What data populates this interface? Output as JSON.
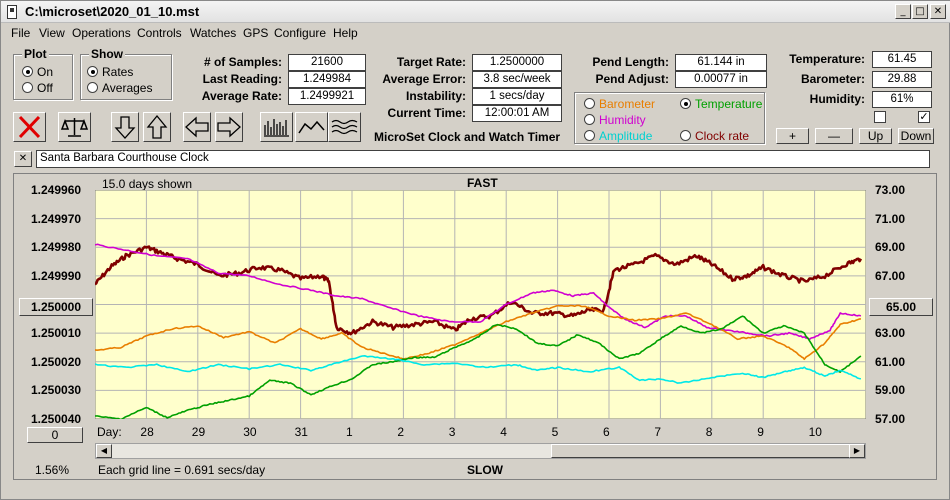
{
  "window": {
    "title": "C:\\microset\\2020_01_10.mst"
  },
  "window_controls": {
    "minimize": "_",
    "maximize": "□",
    "close": "✕"
  },
  "menu": [
    "File",
    "View",
    "Operations",
    "Controls",
    "Watches",
    "GPS",
    "Configure",
    "Help"
  ],
  "plot_group": {
    "title": "Plot",
    "options": [
      "On",
      "Off"
    ],
    "selected": "On"
  },
  "show_group": {
    "title": "Show",
    "options": [
      "Rates",
      "Averages"
    ],
    "selected": "Rates"
  },
  "stats": {
    "samples_label": "# of Samples:",
    "samples": "21600",
    "last_reading_label": "Last Reading:",
    "last_reading": "1.249984",
    "average_rate_label": "Average Rate:",
    "average_rate": "1.2499921",
    "target_rate_label": "Target Rate:",
    "target_rate": "1.2500000",
    "average_error_label": "Average Error:",
    "average_error": "3.8 sec/week",
    "instability_label": "Instability:",
    "instability": "1 secs/day",
    "current_time_label": "Current Time:",
    "current_time": "12:00:01 AM",
    "pend_length_label": "Pend Length:",
    "pend_length": "61.144 in",
    "pend_adjust_label": "Pend Adjust:",
    "pend_adjust": "0.00077 in",
    "temperature_label": "Temperature:",
    "temperature": "61.45",
    "barometer_label": "Barometer:",
    "barometer": "29.88",
    "humidity_label": "Humidity:",
    "humidity": "61%"
  },
  "app_caption": "MicroSet Clock and Watch Timer",
  "sensor_select": {
    "options": [
      {
        "label": "Barometer",
        "color": "#e87e00",
        "selected": false
      },
      {
        "label": "Temperature",
        "color": "#00a000",
        "selected": true
      },
      {
        "label": "Humidity",
        "color": "#d000d0",
        "selected": false
      },
      {
        "label": "Amplitude",
        "color": "#00d0d0",
        "selected": false
      },
      {
        "label": "Clock rate",
        "color": "#800000",
        "selected": false
      }
    ]
  },
  "right_buttons": [
    "+",
    "—",
    "Up",
    "Down"
  ],
  "checkboxes": [
    false,
    true
  ],
  "toolbar_icons": [
    "clear-x-icon",
    "balance-scale-icon",
    "arrow-down-icon",
    "arrow-up-icon",
    "arrow-left-icon",
    "arrow-right-icon",
    "bar-graph-icon",
    "line-graph-icon",
    "wave-graph-icon"
  ],
  "clock_name": {
    "close": "✕",
    "value": "Santa Barbara Courthouse Clock"
  },
  "graph": {
    "days_shown": "15.0 days shown",
    "top_label": "FAST",
    "bottom_label": "SLOW",
    "grid_note": "Each grid line = 0.691 secs/day",
    "percent": "1.56%",
    "center_button": "1.250000",
    "right_center_button": "65.00",
    "zero_button": "0",
    "day_label": "Day:",
    "colors": {
      "background": "#ffffcc",
      "grid": "#b4b4b4",
      "clock": "#800000",
      "barometer": "#e87e00",
      "temperature": "#00a000",
      "humidity": "#d000d0",
      "amplitude": "#00e8e8"
    }
  },
  "chart_data": {
    "type": "line",
    "left_axis": {
      "ticks": [
        "1.249960",
        "1.249970",
        "1.249980",
        "1.249990",
        "1.250000",
        "1.250010",
        "1.250020",
        "1.250030",
        "1.250040"
      ],
      "range": [
        1.24996,
        1.25004
      ],
      "inverted": true
    },
    "right_axis": {
      "ticks": [
        "73.00",
        "71.00",
        "69.00",
        "67.00",
        "65.00",
        "63.00",
        "61.00",
        "59.00",
        "57.00"
      ],
      "range": [
        57,
        73
      ]
    },
    "x_ticks": [
      "28",
      "29",
      "30",
      "31",
      "1",
      "2",
      "3",
      "4",
      "5",
      "6",
      "7",
      "8",
      "9",
      "10"
    ],
    "x_range": [
      0,
      15
    ],
    "series": [
      {
        "name": "Clock rate",
        "axis": "left",
        "points": [
          [
            0,
            1.249993
          ],
          [
            0.3,
            1.249987
          ],
          [
            0.6,
            1.249983
          ],
          [
            1.0,
            1.24998
          ],
          [
            1.3,
            1.249982
          ],
          [
            1.6,
            1.249984
          ],
          [
            2.0,
            1.249986
          ],
          [
            2.4,
            1.24999
          ],
          [
            2.8,
            1.249989
          ],
          [
            3.2,
            1.249987
          ],
          [
            3.6,
            1.249988
          ],
          [
            4.0,
            1.249991
          ],
          [
            4.4,
            1.24999
          ],
          [
            4.55,
            1.249992
          ],
          [
            4.7,
            1.250008
          ],
          [
            5.0,
            1.25001
          ],
          [
            5.4,
            1.250006
          ],
          [
            5.8,
            1.250008
          ],
          [
            6.2,
            1.250007
          ],
          [
            6.6,
            1.250006
          ],
          [
            7.0,
            1.250009
          ],
          [
            7.3,
            1.250005
          ],
          [
            7.7,
            1.250004
          ],
          [
            8.1,
            1.249999
          ],
          [
            8.5,
            1.250003
          ],
          [
            8.9,
            1.250003
          ],
          [
            9.3,
            1.250004
          ],
          [
            9.6,
            1.250002
          ],
          [
            9.9,
            1.250002
          ],
          [
            10.1,
            1.249988
          ],
          [
            10.5,
            1.249986
          ],
          [
            10.9,
            1.249983
          ],
          [
            11.3,
            1.249986
          ],
          [
            11.7,
            1.249983
          ],
          [
            12.0,
            1.249986
          ],
          [
            12.4,
            1.249991
          ],
          [
            12.7,
            1.24999
          ],
          [
            13.0,
            1.249987
          ],
          [
            13.4,
            1.24999
          ],
          [
            13.8,
            1.249992
          ],
          [
            14.2,
            1.24999
          ],
          [
            14.6,
            1.249986
          ],
          [
            14.9,
            1.249984
          ]
        ]
      },
      {
        "name": "Humidity",
        "axis": "left",
        "points": [
          [
            0,
            1.249979
          ],
          [
            0.6,
            1.249981
          ],
          [
            1.2,
            1.249983
          ],
          [
            1.8,
            1.249984
          ],
          [
            2.4,
            1.249989
          ],
          [
            3.0,
            1.24999
          ],
          [
            3.6,
            1.249993
          ],
          [
            4.2,
            1.249995
          ],
          [
            4.7,
            1.249997
          ],
          [
            5.2,
            1.249998
          ],
          [
            5.7,
            1.250001
          ],
          [
            6.3,
            1.250004
          ],
          [
            6.9,
            1.250006
          ],
          [
            7.5,
            1.250006
          ],
          [
            8.0,
            1.25
          ],
          [
            8.5,
            1.249996
          ],
          [
            8.9,
            1.249995
          ],
          [
            9.3,
            1.249997
          ],
          [
            9.7,
            1.249996
          ],
          [
            10.0,
            1.250001
          ],
          [
            10.3,
            1.250005
          ],
          [
            10.7,
            1.250008
          ],
          [
            11.1,
            1.250004
          ],
          [
            11.5,
            1.250004
          ],
          [
            11.9,
            1.250008
          ],
          [
            12.3,
            1.250009
          ],
          [
            12.7,
            1.25001
          ],
          [
            13.1,
            1.250011
          ],
          [
            13.5,
            1.25001
          ],
          [
            13.9,
            1.250012
          ],
          [
            14.3,
            1.250009
          ],
          [
            14.5,
            1.250003
          ],
          [
            14.9,
            1.250004
          ]
        ]
      },
      {
        "name": "Barometer",
        "axis": "right",
        "points": [
          [
            0,
            61.8
          ],
          [
            0.5,
            62.0
          ],
          [
            1.0,
            62.8
          ],
          [
            1.5,
            63.3
          ],
          [
            2.0,
            63.5
          ],
          [
            2.5,
            62.7
          ],
          [
            3.0,
            63.1
          ],
          [
            3.5,
            62.3
          ],
          [
            4.0,
            63.3
          ],
          [
            4.4,
            62.6
          ],
          [
            4.8,
            63.0
          ],
          [
            5.2,
            62.0
          ],
          [
            5.6,
            61.6
          ],
          [
            6.0,
            61.2
          ],
          [
            6.5,
            61.6
          ],
          [
            7.0,
            62.2
          ],
          [
            7.5,
            63.0
          ],
          [
            8.0,
            63.8
          ],
          [
            8.5,
            64.4
          ],
          [
            9.0,
            64.9
          ],
          [
            9.5,
            64.9
          ],
          [
            10.0,
            64.2
          ],
          [
            10.5,
            63.9
          ],
          [
            11.0,
            64.0
          ],
          [
            11.5,
            64.4
          ],
          [
            12.0,
            63.6
          ],
          [
            12.5,
            62.6
          ],
          [
            13.0,
            62.8
          ],
          [
            13.5,
            62.0
          ],
          [
            13.8,
            61.2
          ],
          [
            14.2,
            62.3
          ],
          [
            14.5,
            63.6
          ],
          [
            14.9,
            64.0
          ]
        ]
      },
      {
        "name": "Temperature",
        "axis": "right",
        "points": [
          [
            0,
            57.2
          ],
          [
            0.5,
            57.0
          ],
          [
            1.0,
            57.8
          ],
          [
            1.4,
            57.1
          ],
          [
            1.8,
            57.6
          ],
          [
            2.2,
            58.0
          ],
          [
            2.6,
            58.3
          ],
          [
            3.0,
            58.6
          ],
          [
            3.4,
            59.7
          ],
          [
            3.8,
            59.5
          ],
          [
            4.2,
            58.7
          ],
          [
            4.6,
            59.3
          ],
          [
            5.0,
            59.8
          ],
          [
            5.4,
            60.8
          ],
          [
            5.8,
            61.0
          ],
          [
            6.2,
            61.3
          ],
          [
            6.6,
            61.3
          ],
          [
            7.0,
            62.0
          ],
          [
            7.4,
            62.6
          ],
          [
            7.8,
            63.6
          ],
          [
            8.2,
            63.3
          ],
          [
            8.6,
            62.3
          ],
          [
            9.0,
            62.1
          ],
          [
            9.4,
            62.9
          ],
          [
            9.8,
            62.3
          ],
          [
            10.2,
            61.2
          ],
          [
            10.6,
            61.6
          ],
          [
            11.0,
            62.6
          ],
          [
            11.4,
            63.5
          ],
          [
            11.8,
            63.0
          ],
          [
            12.2,
            63.3
          ],
          [
            12.6,
            64.2
          ],
          [
            13.0,
            63.0
          ],
          [
            13.4,
            63.5
          ],
          [
            13.8,
            63.0
          ],
          [
            14.2,
            60.8
          ],
          [
            14.5,
            60.3
          ],
          [
            14.9,
            61.4
          ]
        ]
      },
      {
        "name": "Amplitude",
        "axis": "right",
        "points": [
          [
            0,
            60.8
          ],
          [
            0.6,
            60.6
          ],
          [
            1.2,
            60.8
          ],
          [
            1.8,
            60.3
          ],
          [
            2.4,
            60.8
          ],
          [
            3.0,
            60.5
          ],
          [
            3.6,
            60.8
          ],
          [
            4.2,
            60.4
          ],
          [
            4.6,
            60.8
          ],
          [
            5.2,
            61.4
          ],
          [
            5.8,
            61.2
          ],
          [
            6.4,
            60.8
          ],
          [
            7.0,
            60.9
          ],
          [
            7.6,
            60.6
          ],
          [
            8.2,
            60.8
          ],
          [
            8.6,
            60.4
          ],
          [
            9.0,
            60.6
          ],
          [
            9.6,
            60.3
          ],
          [
            10.2,
            60.6
          ],
          [
            10.6,
            59.7
          ],
          [
            11.0,
            59.8
          ],
          [
            11.4,
            59.5
          ],
          [
            12.0,
            59.9
          ],
          [
            12.6,
            60.2
          ],
          [
            13.0,
            59.9
          ],
          [
            13.4,
            60.3
          ],
          [
            13.8,
            60.6
          ],
          [
            14.2,
            60.0
          ],
          [
            14.5,
            60.4
          ],
          [
            14.9,
            59.8
          ]
        ]
      }
    ]
  }
}
